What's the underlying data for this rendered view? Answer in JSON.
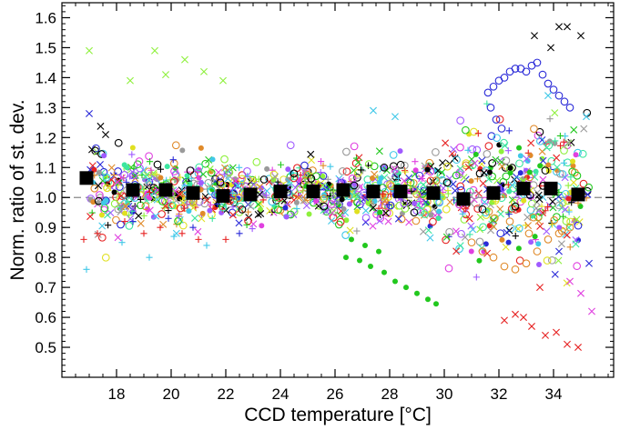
{
  "chart_data": {
    "type": "scatter",
    "xlabel": "CCD temperature [°C]",
    "ylabel": "Norm. ratio of st. dev.",
    "xlim": [
      16.0,
      36.2
    ],
    "ylim": [
      0.4,
      1.65
    ],
    "xticks": [
      18,
      20,
      22,
      24,
      26,
      28,
      30,
      32,
      34
    ],
    "yticks": [
      0.5,
      0.6,
      0.7,
      0.8,
      0.9,
      1.0,
      1.1,
      1.2,
      1.3,
      1.4,
      1.5,
      1.6
    ],
    "x_minor_step": 0.5,
    "y_minor_step": 0.02,
    "reference_line": {
      "y": 1.0,
      "style": "dashed",
      "color": "#888888"
    },
    "binned_means": {
      "name": "binned mean",
      "marker": "filled-square",
      "color": "#000000",
      "x": [
        16.9,
        18.6,
        19.8,
        20.8,
        21.9,
        22.9,
        24.0,
        25.2,
        26.3,
        27.4,
        28.4,
        29.6,
        30.7,
        31.8,
        32.9,
        33.9,
        34.9
      ],
      "y": [
        1.065,
        1.025,
        1.025,
        1.015,
        1.005,
        1.01,
        1.02,
        1.02,
        1.025,
        1.02,
        1.02,
        1.015,
        0.995,
        1.015,
        1.03,
        1.03,
        1.01
      ]
    },
    "scatter_series": [
      {
        "marker": "filled-circle",
        "color": "#22c81e",
        "x": [
          26.4,
          26.9,
          27.3,
          27.8,
          28.2,
          28.6,
          29.0,
          29.4,
          29.7,
          26.6,
          27.1,
          27.6
        ],
        "y": [
          0.8,
          0.79,
          0.77,
          0.75,
          0.72,
          0.7,
          0.68,
          0.66,
          0.645,
          0.86,
          0.84,
          0.82
        ]
      },
      {
        "marker": "open-circle",
        "color": "#2a2ad8",
        "x": [
          31.6,
          31.8,
          32.0,
          32.2,
          32.4,
          32.6,
          32.8,
          33.0,
          33.2,
          33.4,
          33.6,
          33.8,
          34.0,
          34.2,
          34.4,
          34.6,
          31.7,
          31.9,
          32.1
        ],
        "y": [
          1.35,
          1.37,
          1.39,
          1.4,
          1.42,
          1.43,
          1.43,
          1.42,
          1.44,
          1.45,
          1.41,
          1.38,
          1.36,
          1.34,
          1.32,
          1.3,
          1.3,
          1.26,
          1.23
        ]
      },
      {
        "marker": "cross",
        "color": "#000000",
        "x": [
          33.3,
          33.9,
          34.2,
          34.5,
          35.0,
          17.6,
          17.1
        ],
        "y": [
          1.54,
          1.5,
          1.57,
          1.57,
          1.54,
          1.21,
          1.16
        ]
      },
      {
        "marker": "cross",
        "color": "#8ef03c",
        "x": [
          17.0,
          18.5,
          19.4,
          19.8,
          20.5,
          21.2,
          21.9
        ],
        "y": [
          1.49,
          1.39,
          1.49,
          1.41,
          1.46,
          1.42,
          1.39
        ]
      },
      {
        "marker": "cross",
        "color": "#e62222",
        "x": [
          32.2,
          32.6,
          32.9,
          33.2,
          33.7,
          34.1,
          34.5,
          34.9,
          33.5
        ],
        "y": [
          0.59,
          0.61,
          0.6,
          0.57,
          0.54,
          0.55,
          0.51,
          0.5,
          0.7
        ]
      },
      {
        "marker": "cross",
        "color": "#e040e0",
        "x": [
          35.4,
          35.0,
          34.6
        ],
        "y": [
          0.62,
          0.68,
          0.72
        ]
      },
      {
        "marker": "cross",
        "color": "#2a2ad8",
        "x": [
          17.0,
          17.4,
          35.3,
          34.2
        ],
        "y": [
          1.28,
          1.11,
          0.78,
          0.82
        ]
      },
      {
        "marker": "cross",
        "color": "#40c8e8",
        "x": [
          27.4,
          28.2,
          33.8,
          35.2
        ],
        "y": [
          1.29,
          1.27,
          1.34,
          1.27
        ]
      },
      {
        "marker": "plus",
        "color": "#e62222",
        "x": [
          16.8,
          17.3,
          18.3,
          19.0,
          19.6,
          20.4,
          21.0,
          22.0
        ],
        "y": [
          0.86,
          0.88,
          0.92,
          0.88,
          0.9,
          0.88,
          0.86,
          0.86
        ]
      },
      {
        "marker": "plus",
        "color": "#40c8e8",
        "x": [
          16.9,
          18.2,
          19.2,
          20.1,
          21.3
        ],
        "y": [
          0.76,
          0.85,
          0.8,
          0.87,
          0.84
        ]
      },
      {
        "marker": "plus",
        "color": "#2a2ad8",
        "x": [
          18.6,
          19.9,
          20.8,
          22.5
        ],
        "y": [
          0.92,
          0.93,
          0.9,
          0.88
        ]
      },
      {
        "marker": "open-circle",
        "color": "#e08a2a",
        "x": [
          31.0,
          31.4,
          31.8,
          32.2,
          32.6,
          33.0,
          33.4,
          33.8,
          34.2,
          34.6,
          32.4,
          33.1
        ],
        "y": [
          0.85,
          0.82,
          0.8,
          0.77,
          0.76,
          0.78,
          0.82,
          0.86,
          0.88,
          0.9,
          0.92,
          0.88
        ]
      },
      {
        "marker": "open-circle",
        "color": "#000000",
        "x": [
          19.5,
          20.7,
          21.8,
          22.6,
          23.4,
          24.5,
          25.6,
          26.7,
          27.8,
          28.9,
          30.1,
          31.3,
          32.6,
          33.7
        ],
        "y": [
          1.11,
          1.09,
          1.05,
          0.96,
          1.06,
          1.08,
          0.97,
          1.04,
          1.1,
          0.95,
          1.05,
          1.08,
          0.97,
          1.09
        ]
      }
    ],
    "cloud_colors": [
      "#e62222",
      "#22c81e",
      "#2a2ad8",
      "#40c8e8",
      "#e040e0",
      "#e0e020",
      "#000000",
      "#8ef03c",
      "#e08a2a",
      "#3ce6a0",
      "#9a9a9a",
      "#a05aff"
    ]
  }
}
